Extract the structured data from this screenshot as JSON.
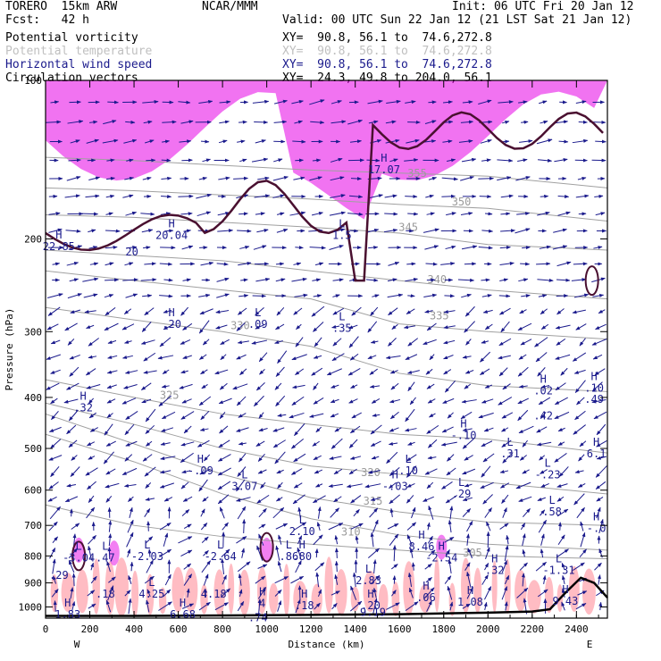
{
  "header": {
    "model": "TORERO  15km ARW",
    "org": "NCAR/MMM",
    "init": "Init: 06 UTC Fri 20 Jan 12",
    "fcst": "Fcst:   42 h",
    "valid": "Valid: 00 UTC Sun 22 Jan 12 (21 LST Sat 21 Jan 12)"
  },
  "legend": [
    {
      "label": "Potential vorticity",
      "xy": "XY=  90.8, 56.1 to  74.6,272.8",
      "color": "#000000"
    },
    {
      "label": "Potential temperature",
      "xy": "XY=  90.8, 56.1 to  74.6,272.8",
      "color": "#c0c0c0"
    },
    {
      "label": "Horizontal wind speed",
      "xy": "XY=  90.8, 56.1 to  74.6,272.8",
      "color": "#1a1a8c"
    },
    {
      "label": "Circulation vectors",
      "xy": "XY=  24.3, 49.8 to 204.0, 56.1",
      "color": "#000000"
    }
  ],
  "colors": {
    "pv_fill": "#e600e6",
    "wind_fill": "#ffb0b8",
    "vectors": "#1a1a8c",
    "theta": "#a0a0a0",
    "terrain": "#000000",
    "tropopause": "#4a1030"
  },
  "chart_data": {
    "type": "cross-section",
    "xlabel": "Distance (km)",
    "ylabel": "Pressure (hPa)",
    "xlim": [
      0,
      2540
    ],
    "ylim": [
      1050,
      100
    ],
    "y_log": true,
    "x_ticks": [
      0,
      200,
      400,
      600,
      800,
      1000,
      1200,
      1400,
      1600,
      1800,
      2000,
      2200,
      2400
    ],
    "y_ticks": [
      100,
      200,
      300,
      400,
      500,
      600,
      700,
      800,
      900,
      1000
    ],
    "x_end_labels": {
      "left": "W",
      "right": "E"
    },
    "theta_contours": [
      {
        "value": "305",
        "points": [
          [
            0,
            640
          ],
          [
            400,
            700
          ],
          [
            800,
            735
          ],
          [
            1200,
            760
          ],
          [
            1600,
            780
          ],
          [
            2000,
            800
          ],
          [
            2540,
            810
          ]
        ],
        "label_at": [
          1930,
          790
        ]
      },
      {
        "value": "310",
        "points": [
          [
            0,
            470
          ],
          [
            400,
            530
          ],
          [
            800,
            610
          ],
          [
            1200,
            680
          ],
          [
            1600,
            730
          ],
          [
            2000,
            760
          ],
          [
            2540,
            780
          ]
        ],
        "label_at": [
          1380,
          720
        ]
      },
      {
        "value": "315",
        "points": [
          [
            0,
            430
          ],
          [
            400,
            490
          ],
          [
            800,
            560
          ],
          [
            1200,
            620
          ],
          [
            1600,
            660
          ],
          [
            2000,
            690
          ],
          [
            2540,
            700
          ]
        ],
        "label_at": [
          1480,
          630
        ]
      },
      {
        "value": "320",
        "points": [
          [
            0,
            410
          ],
          [
            400,
            450
          ],
          [
            800,
            500
          ],
          [
            1200,
            540
          ],
          [
            1600,
            560
          ],
          [
            2000,
            580
          ],
          [
            2540,
            610
          ]
        ],
        "label_at": [
          1470,
          555
        ]
      },
      {
        "value": "325",
        "points": [
          [
            0,
            370
          ],
          [
            400,
            400
          ],
          [
            800,
            430
          ],
          [
            1200,
            450
          ],
          [
            1600,
            470
          ],
          [
            2000,
            480
          ],
          [
            2540,
            510
          ]
        ],
        "label_at": [
          560,
          396
        ]
      },
      {
        "value": "330",
        "points": [
          [
            0,
            270
          ],
          [
            400,
            285
          ],
          [
            800,
            300
          ],
          [
            1200,
            320
          ],
          [
            1600,
            360
          ],
          [
            2000,
            380
          ],
          [
            2540,
            390
          ]
        ],
        "label_at": [
          880,
          292
        ]
      },
      {
        "value": "335",
        "points": [
          [
            0,
            230
          ],
          [
            400,
            240
          ],
          [
            800,
            250
          ],
          [
            1200,
            260
          ],
          [
            1600,
            290
          ],
          [
            2000,
            300
          ],
          [
            2540,
            310
          ]
        ],
        "label_at": [
          1780,
          280
        ]
      },
      {
        "value": "340",
        "points": [
          [
            0,
            210
          ],
          [
            400,
            215
          ],
          [
            800,
            220
          ],
          [
            1200,
            230
          ],
          [
            1600,
            240
          ],
          [
            2000,
            250
          ],
          [
            2540,
            260
          ]
        ],
        "label_at": [
          1770,
          239
        ]
      },
      {
        "value": "345",
        "points": [
          [
            0,
            180
          ],
          [
            400,
            182
          ],
          [
            800,
            186
          ],
          [
            1200,
            190
          ],
          [
            1600,
            195
          ],
          [
            2000,
            205
          ],
          [
            2540,
            210
          ]
        ],
        "label_at": [
          1640,
          190
        ]
      },
      {
        "value": "350",
        "points": [
          [
            0,
            160
          ],
          [
            400,
            162
          ],
          [
            800,
            165
          ],
          [
            1200,
            168
          ],
          [
            1600,
            172
          ],
          [
            2000,
            175
          ],
          [
            2540,
            185
          ]
        ],
        "label_at": [
          1880,
          170
        ]
      },
      {
        "value": "355",
        "points": [
          [
            0,
            140
          ],
          [
            400,
            142
          ],
          [
            800,
            145
          ],
          [
            1200,
            148
          ],
          [
            1600,
            150
          ],
          [
            2000,
            152
          ],
          [
            2540,
            160
          ]
        ],
        "label_at": [
          1680,
          150
        ]
      }
    ],
    "highs_lows": [
      {
        "kind": "H",
        "value": "22.85",
        "x": 60,
        "p": 210
      },
      {
        "kind": "H",
        "value": "20.04",
        "x": 570,
        "p": 200
      },
      {
        "kind": "H",
        "value": "17.07",
        "x": 1530,
        "p": 150
      },
      {
        "kind": "L",
        "value": "1.5",
        "x": 1340,
        "p": 200
      },
      {
        "kind": "",
        "value": "20",
        "x": 390,
        "p": 215
      },
      {
        "kind": "H",
        "value": ".20",
        "x": 570,
        "p": 295
      },
      {
        "kind": "L",
        "value": ".09",
        "x": 960,
        "p": 295
      },
      {
        "kind": "L",
        "value": ".35",
        "x": 1340,
        "p": 300
      },
      {
        "kind": "H",
        "value": ".32",
        "x": 170,
        "p": 425
      },
      {
        "kind": "H",
        "value": ".02",
        "x": 2250,
        "p": 395
      },
      {
        "kind": "H",
        "value": ".10",
        "x": 2480,
        "p": 390
      },
      {
        "kind": "",
        "value": ".49",
        "x": 2480,
        "p": 410
      },
      {
        "kind": "",
        "value": ".42",
        "x": 2250,
        "p": 440
      },
      {
        "kind": "H",
        "value": "-.10",
        "x": 1890,
        "p": 480
      },
      {
        "kind": "L",
        "value": ".31",
        "x": 2100,
        "p": 520
      },
      {
        "kind": "H",
        "value": "6.1",
        "x": 2490,
        "p": 520
      },
      {
        "kind": "H",
        "value": "-.09",
        "x": 700,
        "p": 560
      },
      {
        "kind": "L",
        "value": "3.07",
        "x": 900,
        "p": 600
      },
      {
        "kind": "L",
        "value": ".10",
        "x": 1640,
        "p": 560
      },
      {
        "kind": "H",
        "value": "-.03",
        "x": 1580,
        "p": 600
      },
      {
        "kind": "L",
        "value": "-.23",
        "x": 2270,
        "p": 570
      },
      {
        "kind": "L",
        "value": ".29",
        "x": 1880,
        "p": 620
      },
      {
        "kind": "L",
        "value": ".58",
        "x": 2290,
        "p": 670
      },
      {
        "kind": "H",
        "value": "-.0",
        "x": 2490,
        "p": 720
      },
      {
        "kind": "L",
        "value": "2.10",
        "x": 1160,
        "p": 730
      },
      {
        "kind": "H",
        "value": "8.46",
        "x": 1700,
        "p": 780
      },
      {
        "kind": "H",
        "value": "-2.54",
        "x": 1790,
        "p": 820
      },
      {
        "kind": "L",
        "value": "-3.04",
        "x": 150,
        "p": 820
      },
      {
        "kind": "L",
        "value": ".47",
        "x": 270,
        "p": 820
      },
      {
        "kind": "L",
        "value": "-2.03",
        "x": 460,
        "p": 815
      },
      {
        "kind": "L",
        "value": "-2.64",
        "x": 790,
        "p": 815
      },
      {
        "kind": "L",
        "value": ".86",
        "x": 1100,
        "p": 815
      },
      {
        "kind": "H",
        "value": ".80",
        "x": 1160,
        "p": 815
      },
      {
        "kind": "H",
        "value": ".32",
        "x": 2030,
        "p": 865
      },
      {
        "kind": "L",
        "value": "-1.31",
        "x": 2320,
        "p": 865
      },
      {
        "kind": "",
        "value": ".29",
        "x": 60,
        "p": 885
      },
      {
        "kind": "L",
        "value": "2.83",
        "x": 1460,
        "p": 905
      },
      {
        "kind": "L",
        "value": "4.25",
        "x": 480,
        "p": 960
      },
      {
        "kind": "",
        "value": "4.18",
        "x": 760,
        "p": 960
      },
      {
        "kind": "",
        "value": ".18",
        "x": 270,
        "p": 960
      },
      {
        "kind": "H",
        "value": ".06",
        "x": 1720,
        "p": 975
      },
      {
        "kind": "H",
        "value": "1.08",
        "x": 1920,
        "p": 995
      },
      {
        "kind": "H",
        "value": "9.43",
        "x": 2350,
        "p": 990
      },
      {
        "kind": "H",
        "value": "4",
        "x": 980,
        "p": 1000
      },
      {
        "kind": "H",
        "value": ".18",
        "x": 1170,
        "p": 1010
      },
      {
        "kind": "H",
        "value": ".20",
        "x": 1470,
        "p": 1010
      },
      {
        "kind": "",
        "value": "9.19",
        "x": 1480,
        "p": 1040
      },
      {
        "kind": "H",
        "value": "1.83",
        "x": 100,
        "p": 1050
      },
      {
        "kind": "H",
        "value": "6.68",
        "x": 620,
        "p": 1050
      },
      {
        "kind": "",
        "value": ".74",
        "x": 960,
        "p": 1065
      }
    ]
  }
}
